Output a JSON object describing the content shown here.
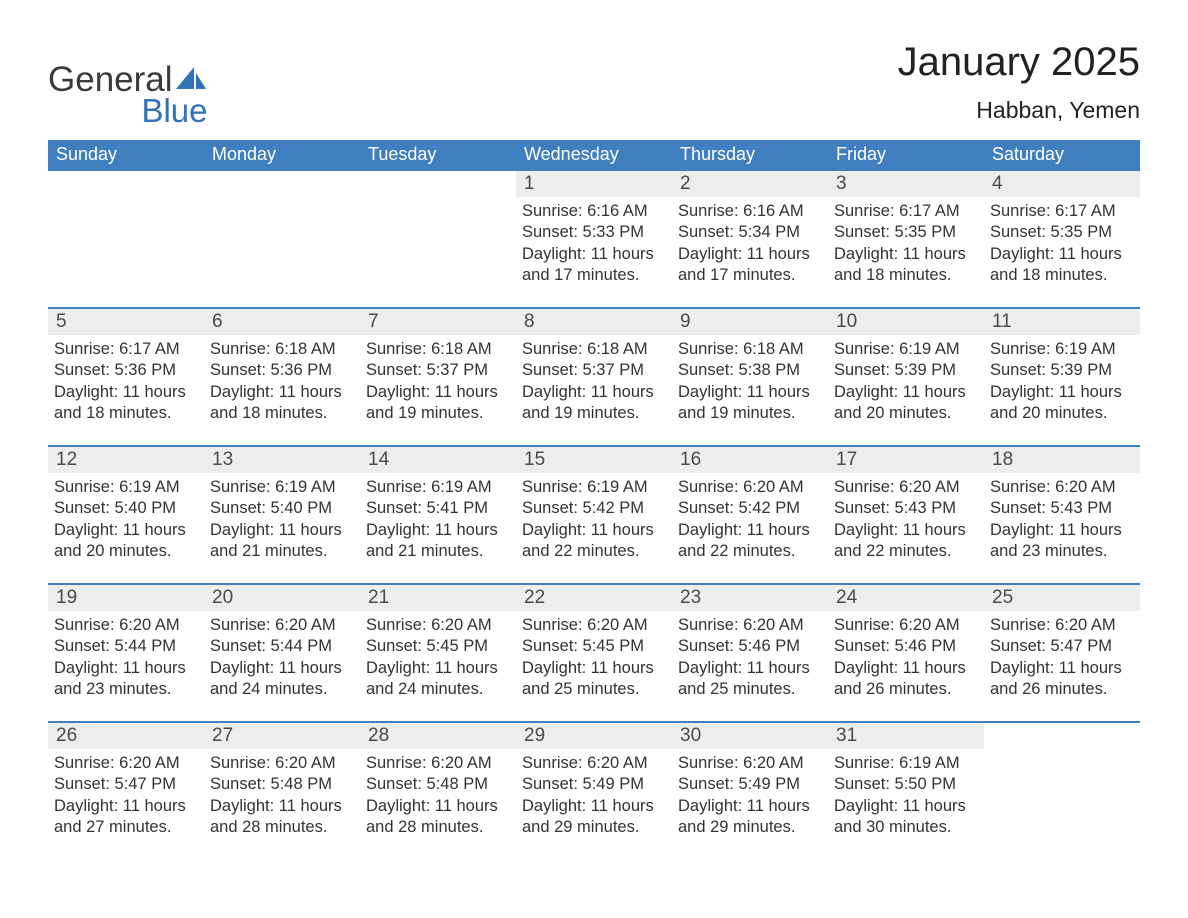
{
  "brand": {
    "general": "General",
    "blue": "Blue"
  },
  "title": "January 2025",
  "location": "Habban, Yemen",
  "colors": {
    "header_bg": "#3f7fbf",
    "header_text": "#ffffff",
    "daynum_bg": "#ededed",
    "row_divider": "#3f7fbf",
    "logo_blue": "#2f73b6",
    "body_text": "#333333",
    "page_bg": "#ffffff"
  },
  "typography": {
    "title_fontsize": 40,
    "location_fontsize": 23,
    "header_fontsize": 18,
    "daynum_fontsize": 19,
    "cell_fontsize": 16.5
  },
  "layout": {
    "columns": 7,
    "rows": 5,
    "col_width_pct": 14.2857
  },
  "weekdays": [
    "Sunday",
    "Monday",
    "Tuesday",
    "Wednesday",
    "Thursday",
    "Friday",
    "Saturday"
  ],
  "labels": {
    "sunrise": "Sunrise:",
    "sunset": "Sunset:",
    "daylight": "Daylight:"
  },
  "weeks": [
    [
      null,
      null,
      null,
      {
        "n": "1",
        "sunrise": "6:16 AM",
        "sunset": "5:33 PM",
        "daylight": "11 hours and 17 minutes."
      },
      {
        "n": "2",
        "sunrise": "6:16 AM",
        "sunset": "5:34 PM",
        "daylight": "11 hours and 17 minutes."
      },
      {
        "n": "3",
        "sunrise": "6:17 AM",
        "sunset": "5:35 PM",
        "daylight": "11 hours and 18 minutes."
      },
      {
        "n": "4",
        "sunrise": "6:17 AM",
        "sunset": "5:35 PM",
        "daylight": "11 hours and 18 minutes."
      }
    ],
    [
      {
        "n": "5",
        "sunrise": "6:17 AM",
        "sunset": "5:36 PM",
        "daylight": "11 hours and 18 minutes."
      },
      {
        "n": "6",
        "sunrise": "6:18 AM",
        "sunset": "5:36 PM",
        "daylight": "11 hours and 18 minutes."
      },
      {
        "n": "7",
        "sunrise": "6:18 AM",
        "sunset": "5:37 PM",
        "daylight": "11 hours and 19 minutes."
      },
      {
        "n": "8",
        "sunrise": "6:18 AM",
        "sunset": "5:37 PM",
        "daylight": "11 hours and 19 minutes."
      },
      {
        "n": "9",
        "sunrise": "6:18 AM",
        "sunset": "5:38 PM",
        "daylight": "11 hours and 19 minutes."
      },
      {
        "n": "10",
        "sunrise": "6:19 AM",
        "sunset": "5:39 PM",
        "daylight": "11 hours and 20 minutes."
      },
      {
        "n": "11",
        "sunrise": "6:19 AM",
        "sunset": "5:39 PM",
        "daylight": "11 hours and 20 minutes."
      }
    ],
    [
      {
        "n": "12",
        "sunrise": "6:19 AM",
        "sunset": "5:40 PM",
        "daylight": "11 hours and 20 minutes."
      },
      {
        "n": "13",
        "sunrise": "6:19 AM",
        "sunset": "5:40 PM",
        "daylight": "11 hours and 21 minutes."
      },
      {
        "n": "14",
        "sunrise": "6:19 AM",
        "sunset": "5:41 PM",
        "daylight": "11 hours and 21 minutes."
      },
      {
        "n": "15",
        "sunrise": "6:19 AM",
        "sunset": "5:42 PM",
        "daylight": "11 hours and 22 minutes."
      },
      {
        "n": "16",
        "sunrise": "6:20 AM",
        "sunset": "5:42 PM",
        "daylight": "11 hours and 22 minutes."
      },
      {
        "n": "17",
        "sunrise": "6:20 AM",
        "sunset": "5:43 PM",
        "daylight": "11 hours and 22 minutes."
      },
      {
        "n": "18",
        "sunrise": "6:20 AM",
        "sunset": "5:43 PM",
        "daylight": "11 hours and 23 minutes."
      }
    ],
    [
      {
        "n": "19",
        "sunrise": "6:20 AM",
        "sunset": "5:44 PM",
        "daylight": "11 hours and 23 minutes."
      },
      {
        "n": "20",
        "sunrise": "6:20 AM",
        "sunset": "5:44 PM",
        "daylight": "11 hours and 24 minutes."
      },
      {
        "n": "21",
        "sunrise": "6:20 AM",
        "sunset": "5:45 PM",
        "daylight": "11 hours and 24 minutes."
      },
      {
        "n": "22",
        "sunrise": "6:20 AM",
        "sunset": "5:45 PM",
        "daylight": "11 hours and 25 minutes."
      },
      {
        "n": "23",
        "sunrise": "6:20 AM",
        "sunset": "5:46 PM",
        "daylight": "11 hours and 25 minutes."
      },
      {
        "n": "24",
        "sunrise": "6:20 AM",
        "sunset": "5:46 PM",
        "daylight": "11 hours and 26 minutes."
      },
      {
        "n": "25",
        "sunrise": "6:20 AM",
        "sunset": "5:47 PM",
        "daylight": "11 hours and 26 minutes."
      }
    ],
    [
      {
        "n": "26",
        "sunrise": "6:20 AM",
        "sunset": "5:47 PM",
        "daylight": "11 hours and 27 minutes."
      },
      {
        "n": "27",
        "sunrise": "6:20 AM",
        "sunset": "5:48 PM",
        "daylight": "11 hours and 28 minutes."
      },
      {
        "n": "28",
        "sunrise": "6:20 AM",
        "sunset": "5:48 PM",
        "daylight": "11 hours and 28 minutes."
      },
      {
        "n": "29",
        "sunrise": "6:20 AM",
        "sunset": "5:49 PM",
        "daylight": "11 hours and 29 minutes."
      },
      {
        "n": "30",
        "sunrise": "6:20 AM",
        "sunset": "5:49 PM",
        "daylight": "11 hours and 29 minutes."
      },
      {
        "n": "31",
        "sunrise": "6:19 AM",
        "sunset": "5:50 PM",
        "daylight": "11 hours and 30 minutes."
      },
      null
    ]
  ]
}
